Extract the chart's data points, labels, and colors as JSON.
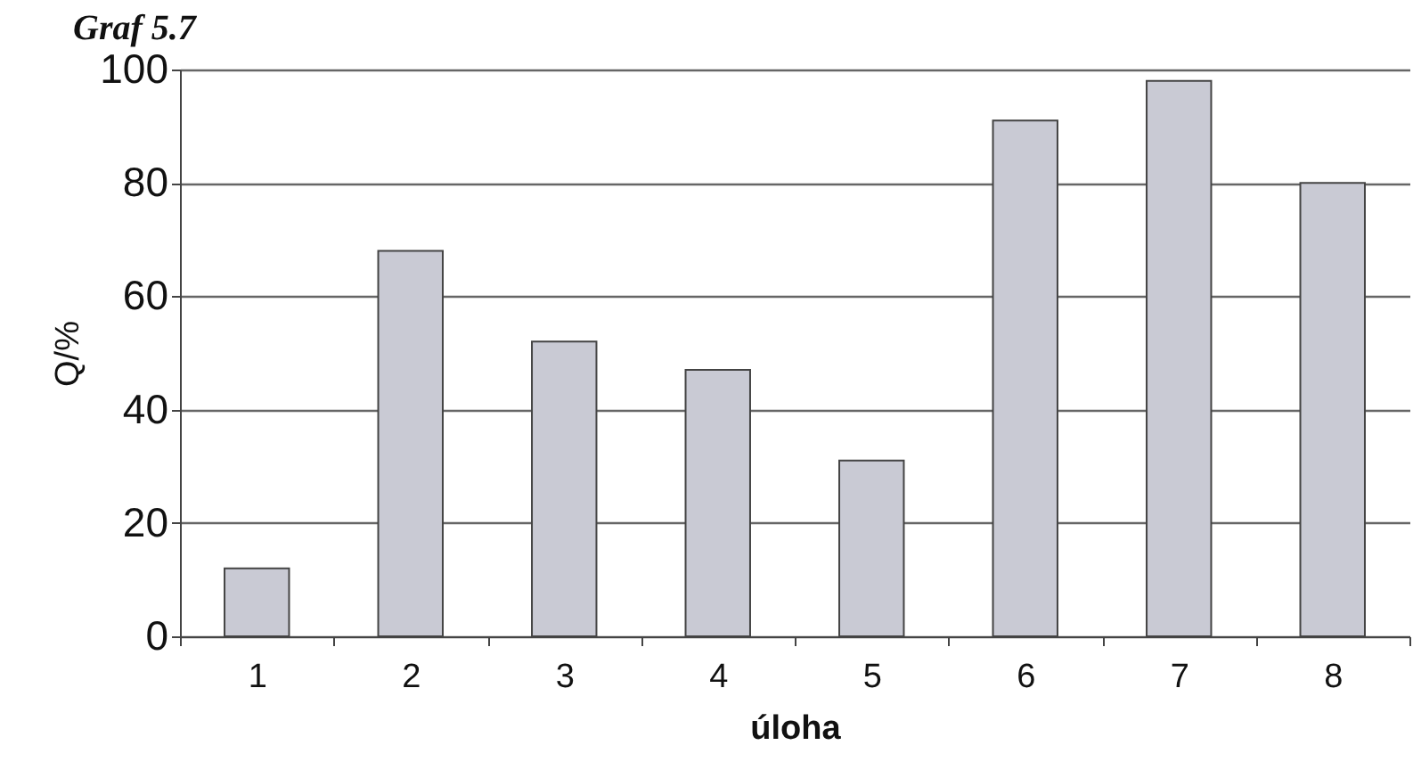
{
  "chart_data": {
    "type": "bar",
    "title": "Graf 5.7",
    "xlabel": "úloha",
    "ylabel": "Q/%",
    "categories": [
      "1",
      "2",
      "3",
      "4",
      "5",
      "6",
      "7",
      "8"
    ],
    "values": [
      12,
      68,
      52,
      47,
      31,
      91,
      98,
      80
    ],
    "color": "#c9cad4",
    "ylim": [
      0,
      100
    ],
    "yticks": [
      0,
      20,
      40,
      60,
      80,
      100
    ],
    "grid": "y"
  }
}
